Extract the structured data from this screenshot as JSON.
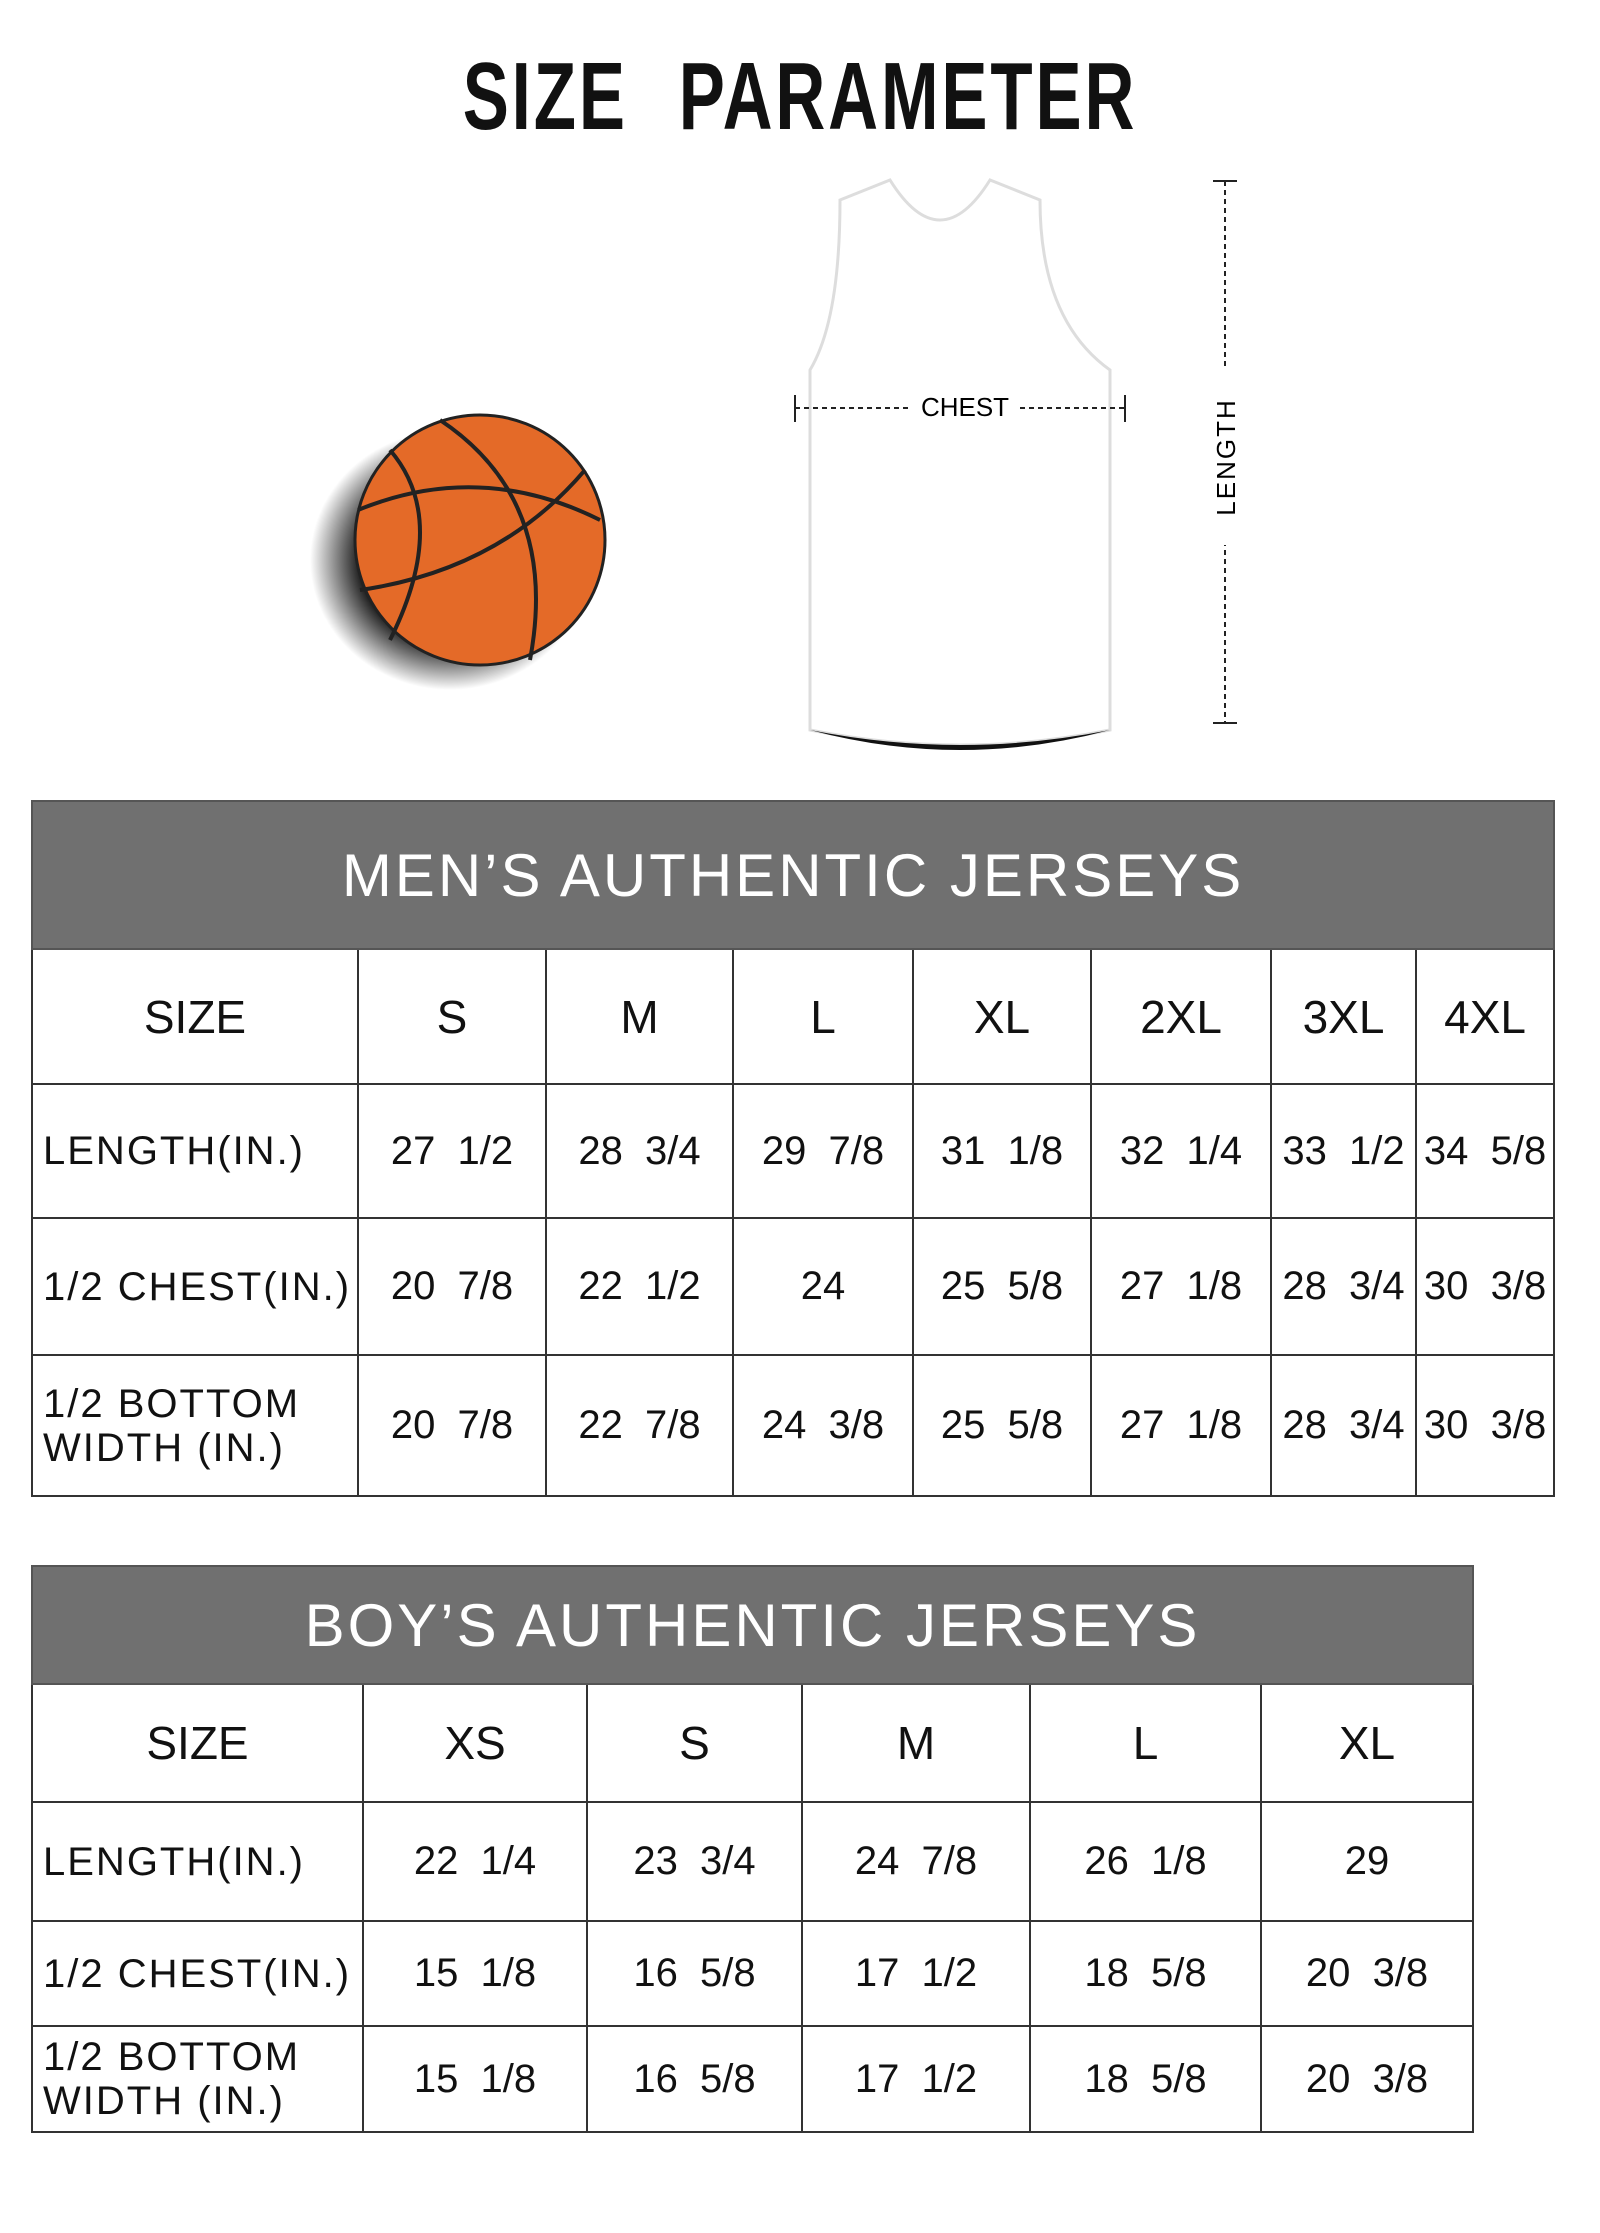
{
  "title": "SIZE PARAMETER",
  "diagram": {
    "chest_label": "CHEST",
    "length_label": "LENGTH",
    "ball_color": "#e46a28"
  },
  "header_color": "#707070",
  "mens": {
    "title": "MEN’S AUTHENTIC JERSEYS",
    "size_label": "SIZE",
    "sizes": [
      "S",
      "M",
      "L",
      "XL",
      "2XL",
      "3XL",
      "4XL"
    ],
    "rows": [
      {
        "label": "LENGTH(IN.)",
        "values": [
          "27  1/2",
          "28  3/4",
          "29  7/8",
          "31  1/8",
          "32  1/4",
          "33  1/2",
          "34  5/8"
        ]
      },
      {
        "label": "1/2 CHEST(IN.)",
        "values": [
          "20  7/8",
          "22  1/2",
          "24",
          "25  5/8",
          "27  1/8",
          "28  3/4",
          "30  3/8"
        ]
      },
      {
        "label": "1/2 BOTTOM WIDTH  (IN.)",
        "values": [
          "20  7/8",
          "22  7/8",
          "24  3/8",
          "25  5/8",
          "27  1/8",
          "28  3/4",
          "30  3/8"
        ]
      }
    ]
  },
  "boys": {
    "title": "BOY’S AUTHENTIC JERSEYS",
    "size_label": "SIZE",
    "sizes": [
      "XS",
      "S",
      "M",
      "L",
      "XL"
    ],
    "rows": [
      {
        "label": "LENGTH(IN.)",
        "values": [
          "22  1/4",
          "23  3/4",
          "24  7/8",
          "26  1/8",
          "29"
        ]
      },
      {
        "label": "1/2 CHEST(IN.)",
        "values": [
          "15  1/8",
          "16  5/8",
          "17  1/2",
          "18  5/8",
          "20  3/8"
        ]
      },
      {
        "label": "1/2 BOTTOM WIDTH  (IN.)",
        "values": [
          "15  1/8",
          "16  5/8",
          "17  1/2",
          "18  5/8",
          "20  3/8"
        ]
      }
    ]
  }
}
